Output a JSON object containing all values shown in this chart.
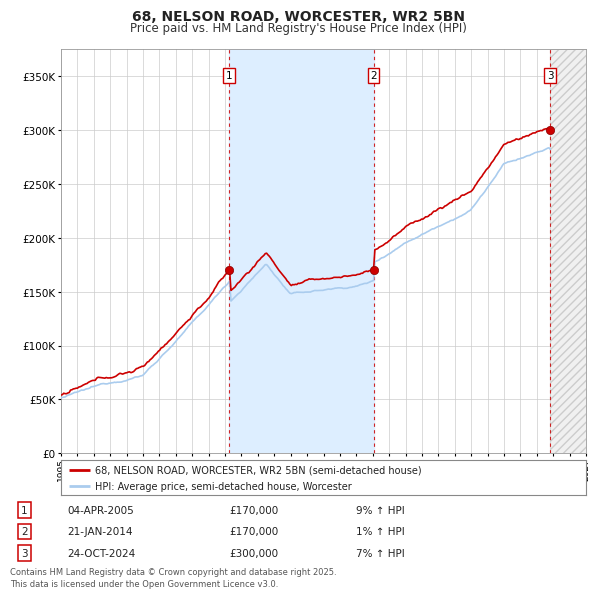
{
  "title": "68, NELSON ROAD, WORCESTER, WR2 5BN",
  "subtitle": "Price paid vs. HM Land Registry's House Price Index (HPI)",
  "property_label": "68, NELSON ROAD, WORCESTER, WR2 5BN (semi-detached house)",
  "hpi_label": "HPI: Average price, semi-detached house, Worcester",
  "transactions": [
    {
      "num": 1,
      "date": "04-APR-2005",
      "price": 170000,
      "hpi_pct": "9%",
      "direction": "↑"
    },
    {
      "num": 2,
      "date": "21-JAN-2014",
      "price": 170000,
      "hpi_pct": "1%",
      "direction": "↑"
    },
    {
      "num": 3,
      "date": "24-OCT-2024",
      "price": 300000,
      "hpi_pct": "7%",
      "direction": "↑"
    }
  ],
  "transaction_years": [
    2005.26,
    2014.05,
    2024.81
  ],
  "footnote": "Contains HM Land Registry data © Crown copyright and database right 2025.\nThis data is licensed under the Open Government Licence v3.0.",
  "property_color": "#cc0000",
  "hpi_color": "#aaccee",
  "background_color": "#ffffff",
  "plot_bg_color": "#ffffff",
  "shaded_region_color": "#ddeeff",
  "vline_color": "#cc0000",
  "ylim": [
    0,
    375000
  ],
  "xlim_start": 1995,
  "xlim_end": 2027,
  "yticks": [
    0,
    50000,
    100000,
    150000,
    200000,
    250000,
    300000,
    350000
  ]
}
